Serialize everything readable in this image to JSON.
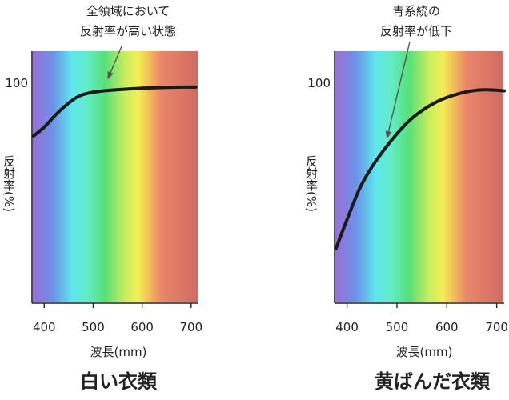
{
  "chart_data": [
    {
      "type": "line",
      "title": "白い衣類",
      "xlabel": "波長(mm)",
      "ylabel": "反射率(%)",
      "xlim": [
        375,
        715
      ],
      "x_ticks": [
        "400",
        "500",
        "600",
        "700"
      ],
      "y_tick_label": "100",
      "annotation": [
        "全領域において",
        "反射率が高い状態"
      ],
      "annotation_target": {
        "x": 530,
        "y": 102
      },
      "background": "spectrum",
      "series": [
        {
          "x": [
            378,
            400,
            425,
            450,
            470,
            490,
            520,
            560,
            600,
            640,
            680,
            710
          ],
          "y": [
            76,
            80,
            86,
            91,
            94,
            95.5,
            96.5,
            97.2,
            97.7,
            98,
            98.2,
            98.2
          ]
        }
      ]
    },
    {
      "type": "line",
      "title": "黄ばんだ衣類",
      "xlabel": "波長(mm)",
      "ylabel": "反射率(%)",
      "xlim": [
        375,
        715
      ],
      "x_ticks": [
        "400",
        "500",
        "600",
        "700"
      ],
      "y_tick_label": "100",
      "annotation": [
        "青系統の",
        "反射率が低下"
      ],
      "annotation_target": {
        "x": 480,
        "y": 75
      },
      "background": "spectrum",
      "series": [
        {
          "x": [
            378,
            400,
            425,
            450,
            475,
            500,
            525,
            550,
            575,
            600,
            625,
            650,
            675,
            700,
            715
          ],
          "y": [
            25,
            38,
            52,
            62,
            70,
            77,
            83,
            87.5,
            91,
            93.5,
            95.3,
            96.5,
            97,
            96.8,
            96.5
          ]
        }
      ]
    }
  ],
  "colors": {
    "curve": "#1a1a1a",
    "text": "#222222",
    "arrow": "#555555"
  }
}
